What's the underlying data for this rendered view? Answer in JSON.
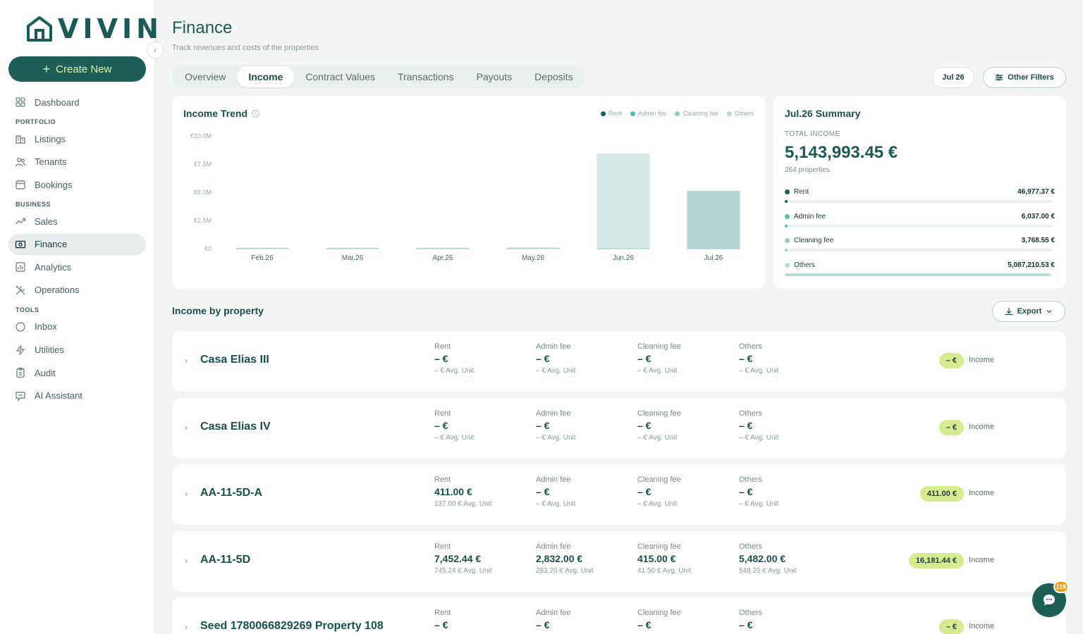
{
  "app": {
    "logo_text": "VIVIN"
  },
  "sidebar": {
    "create_label": "Create New",
    "dashboard": "Dashboard",
    "section_portfolio": "PORTFOLIO",
    "listings": "Listings",
    "tenants": "Tenants",
    "bookings": "Bookings",
    "section_business": "BUSINESS",
    "sales": "Sales",
    "finance": "Finance",
    "analytics": "Analytics",
    "operations": "Operations",
    "section_tools": "TOOLS",
    "inbox": "Inbox",
    "utilities": "Utilities",
    "audit": "Audit",
    "ai_assistant": "AI Assistant"
  },
  "header": {
    "title": "Finance",
    "subtitle": "Track revenues and costs of the properties",
    "tabs": [
      "Overview",
      "Income",
      "Contract Values",
      "Transactions",
      "Payouts",
      "Deposits"
    ],
    "active_tab": "Income",
    "date_chip": "Jul 26",
    "filters_label": "Other Filters"
  },
  "colors": {
    "rent": "#1c5f57",
    "admin_fee": "#4fc1b8",
    "cleaning_fee": "#8fd0b0",
    "others": "#b9dad6",
    "badge": "#d6ea8e"
  },
  "trend": {
    "title": "Income Trend",
    "legend": [
      "Rent",
      "Admin fee",
      "Cleaning fee",
      "Others"
    ]
  },
  "chart_data": {
    "type": "bar",
    "title": "Income Trend",
    "categories": [
      "Feb.26",
      "Mar.26",
      "Apr.26",
      "May.26",
      "Jun.26",
      "Jul.26"
    ],
    "values": [
      0.02,
      0.02,
      0.02,
      0.12,
      8.45,
      5.14
    ],
    "y_unit": "€M",
    "yticks": [
      "€10.0M",
      "€7.5M",
      "€5.0M",
      "€2.5M",
      "€0"
    ],
    "ylim": [
      0,
      10
    ],
    "highlight": "Jul.26",
    "grid": false
  },
  "summary": {
    "title": "Jul.26 Summary",
    "total_label": "TOTAL INCOME",
    "total_value": "5,143,993.45 €",
    "properties": "264 properties",
    "rows": [
      {
        "name": "Rent",
        "value": "46,977.37 €",
        "share": 0.009
      },
      {
        "name": "Admin fee",
        "value": "6,037.00 €",
        "share": 0.001
      },
      {
        "name": "Cleaning fee",
        "value": "3,768.55 €",
        "share": 0.001
      },
      {
        "name": "Others",
        "value": "5,087,210.53 €",
        "share": 0.989
      }
    ]
  },
  "income_by_property": {
    "title": "Income by property",
    "export_label": "Export",
    "metric_labels": [
      "Rent",
      "Admin fee",
      "Cleaning fee",
      "Others"
    ],
    "avg_suffix": "Avg. Unit",
    "income_label": "Income",
    "rows": [
      {
        "name": "Casa Elias III",
        "values": [
          "– €",
          "– €",
          "– €",
          "– €"
        ],
        "avgs": [
          "– € Avg. Unit",
          "– € Avg. Unit",
          "– € Avg. Unit",
          "– € Avg. Unit"
        ],
        "total": "– €"
      },
      {
        "name": "Casa Elias IV",
        "values": [
          "– €",
          "– €",
          "– €",
          "– €"
        ],
        "avgs": [
          "– € Avg. Unit",
          "– € Avg. Unit",
          "– € Avg. Unit",
          "– € Avg. Unit"
        ],
        "total": "– €"
      },
      {
        "name": "AA-11-5D-A",
        "values": [
          "411.00 €",
          "– €",
          "– €",
          "– €"
        ],
        "avgs": [
          "137.00 € Avg. Unit",
          "– € Avg. Unit",
          "– € Avg. Unit",
          "– € Avg. Unit"
        ],
        "total": "411.00 €"
      },
      {
        "name": "AA-11-5D",
        "values": [
          "7,452.44 €",
          "2,832.00 €",
          "415.00 €",
          "5,482.00 €"
        ],
        "avgs": [
          "745.24 € Avg. Unit",
          "283.20 € Avg. Unit",
          "41.50 € Avg. Unit",
          "548.20 € Avg. Unit"
        ],
        "total": "16,181.44 €"
      },
      {
        "name": "Seed 1780066829269 Property 108",
        "values": [
          "– €",
          "– €",
          "– €",
          "– €"
        ],
        "avgs": [
          "",
          "",
          "",
          ""
        ],
        "total": "– €"
      }
    ]
  },
  "chat": {
    "badge": "118"
  }
}
